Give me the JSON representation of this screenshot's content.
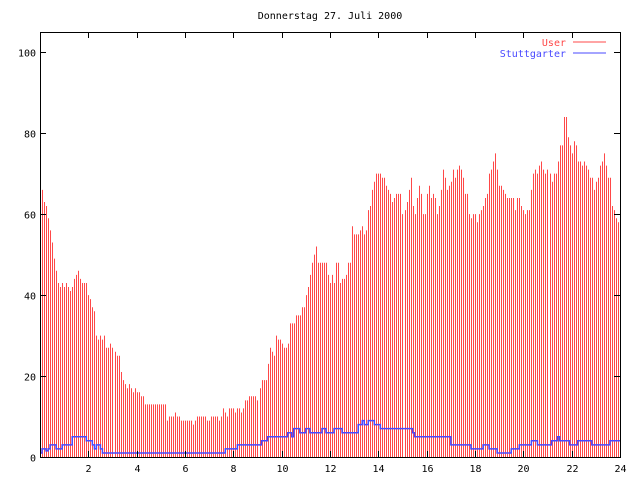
{
  "chart_data": {
    "type": "bar",
    "title": "Donnerstag 27. Juli 2000",
    "xlabel": "",
    "ylabel": "",
    "xlim": [
      0,
      24
    ],
    "ylim": [
      0,
      105
    ],
    "x_ticks": [
      "2",
      "4",
      "6",
      "8",
      "10",
      "12",
      "14",
      "16",
      "18",
      "20",
      "22",
      "24"
    ],
    "x_tick_values": [
      2,
      4,
      6,
      8,
      10,
      12,
      14,
      16,
      18,
      20,
      22,
      24
    ],
    "y_ticks": [
      "0",
      "20",
      "40",
      "60",
      "80",
      "100"
    ],
    "y_tick_values": [
      0,
      20,
      40,
      60,
      80,
      100
    ],
    "grid": false,
    "legend_position": "top-right",
    "x_step_hours": 0.0833333,
    "series": [
      {
        "name": "User",
        "style": "impulses",
        "color": "#ff4848",
        "values": [
          69,
          66,
          63,
          62,
          59,
          56,
          53,
          49,
          46,
          43,
          42,
          43,
          42,
          43,
          42,
          41,
          42,
          44,
          45,
          46,
          44,
          43,
          43,
          43,
          40,
          39,
          37,
          36,
          30,
          29,
          30,
          29,
          30,
          27,
          27,
          28,
          27,
          26,
          25,
          25,
          21,
          19,
          18,
          17,
          18,
          17,
          16,
          17,
          16,
          16,
          15,
          15,
          13,
          13,
          13,
          13,
          13,
          13,
          13,
          13,
          13,
          13,
          13,
          9,
          10,
          10,
          10,
          11,
          10,
          10,
          9,
          9,
          9,
          9,
          9,
          9,
          8,
          9,
          10,
          10,
          10,
          10,
          10,
          9,
          9,
          10,
          10,
          10,
          10,
          9,
          10,
          12,
          11,
          10,
          12,
          12,
          12,
          11,
          12,
          12,
          11,
          12,
          14,
          14,
          15,
          15,
          15,
          15,
          14,
          17,
          19,
          19,
          19,
          23,
          27,
          26,
          25,
          30,
          29,
          29,
          28,
          27,
          27,
          28,
          33,
          33,
          33,
          35,
          35,
          35,
          37,
          37,
          40,
          42,
          45,
          48,
          50,
          52,
          48,
          48,
          48,
          48,
          48,
          45,
          43,
          45,
          43,
          48,
          48,
          43,
          44,
          44,
          45,
          48,
          48,
          57,
          55,
          55,
          55,
          56,
          57,
          55,
          56,
          61,
          62,
          66,
          68,
          70,
          70,
          70,
          69,
          69,
          67,
          66,
          65,
          63,
          64,
          65,
          65,
          65,
          60,
          61,
          63,
          66,
          69,
          62,
          60,
          64,
          67,
          65,
          60,
          60,
          65,
          67,
          64,
          65,
          64,
          60,
          62,
          66,
          71,
          69,
          66,
          67,
          68,
          71,
          69,
          71,
          72,
          71,
          69,
          65,
          65,
          60,
          59,
          60,
          60,
          58,
          60,
          61,
          62,
          64,
          65,
          70,
          71,
          73,
          75,
          71,
          67,
          67,
          66,
          65,
          64,
          64,
          64,
          64,
          61,
          64,
          64,
          62,
          61,
          60,
          61,
          61,
          66,
          70,
          71,
          70,
          72,
          73,
          71,
          70,
          71,
          70,
          68,
          70,
          70,
          73,
          77,
          77,
          84,
          84,
          79,
          77,
          75,
          78,
          77,
          73,
          73,
          72,
          73,
          72,
          71,
          69,
          69,
          66,
          68,
          69,
          72,
          73,
          75,
          72,
          69,
          69,
          62,
          61,
          59,
          58
        ]
      },
      {
        "name": "Stuttgarter",
        "style": "steps",
        "color": "#4848ff",
        "values": [
          1,
          2,
          2,
          1.5,
          2,
          3,
          3,
          3,
          2,
          2,
          2,
          3,
          3,
          3,
          3,
          3,
          5,
          5,
          5,
          5,
          5,
          5,
          5,
          4,
          4,
          4,
          3,
          2,
          3,
          3,
          2,
          1,
          1,
          1,
          1,
          1,
          1,
          1,
          1,
          1,
          1,
          1,
          1,
          1,
          1,
          1,
          1,
          1,
          1,
          1,
          1,
          1,
          1,
          1,
          1,
          1,
          1,
          1,
          1,
          1,
          1,
          1,
          1,
          1,
          1,
          1,
          1,
          1,
          1,
          1,
          1,
          1,
          1,
          1,
          1,
          1,
          1,
          1,
          1,
          1,
          1,
          1,
          1,
          1,
          1,
          1,
          1,
          1,
          1,
          1,
          1,
          1,
          2,
          2,
          2,
          2,
          2,
          2,
          3,
          3,
          3,
          3,
          3,
          3,
          3,
          3,
          3,
          3,
          3,
          3,
          4,
          4,
          4,
          5,
          5,
          5,
          5,
          5,
          5,
          5,
          5,
          5,
          5,
          6,
          6,
          5,
          7,
          7,
          7,
          6,
          6,
          6,
          7,
          7,
          6,
          6,
          6,
          6,
          6,
          6,
          7,
          7,
          6,
          6,
          6,
          6,
          7,
          7,
          7,
          7,
          6,
          6,
          6,
          6,
          6,
          6,
          6,
          6,
          8,
          8,
          9,
          8,
          8,
          9,
          9,
          9,
          8,
          8,
          8,
          7,
          7,
          7,
          7,
          7,
          7,
          7,
          7,
          7,
          7,
          7,
          7,
          7,
          7,
          7,
          7,
          6,
          5,
          5,
          5,
          5,
          5,
          5,
          5,
          5,
          5,
          5,
          5,
          5,
          5,
          5,
          5,
          5,
          5,
          5,
          3,
          3,
          3,
          3,
          3,
          3,
          3,
          3,
          3,
          3,
          2,
          2,
          2,
          2,
          2,
          2,
          3,
          3,
          3,
          2,
          2,
          2,
          2,
          1,
          1,
          1,
          1,
          1,
          1,
          1,
          2,
          2,
          2,
          2,
          3,
          3,
          3,
          3,
          3,
          3,
          4,
          4,
          4,
          3,
          3,
          3,
          3,
          3,
          3,
          3,
          4,
          4,
          4,
          5,
          4,
          4,
          4,
          4,
          4,
          3,
          3,
          3,
          3,
          4,
          4,
          4,
          4,
          4,
          4,
          4,
          3,
          3,
          3,
          3,
          3,
          3,
          3,
          3,
          3,
          4,
          4,
          4,
          4,
          4
        ]
      }
    ]
  }
}
